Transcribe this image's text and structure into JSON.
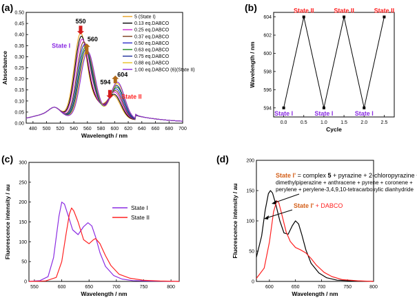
{
  "chart_data": [
    {
      "panel": "(a)",
      "type": "line",
      "xlabel": "Wavelength / nm",
      "ylabel": "Absorbance",
      "xlim": [
        470,
        700
      ],
      "ylim": [
        0,
        0.5
      ],
      "xticks": [
        480,
        500,
        520,
        540,
        560,
        580,
        600,
        620,
        640,
        660,
        680,
        700
      ],
      "yticks": [
        0.0,
        0.05,
        0.1,
        0.15,
        0.2,
        0.25,
        0.3,
        0.35,
        0.4,
        0.45,
        0.5
      ],
      "legend_position": "top-right",
      "series": [
        {
          "name": "5 (State I)",
          "color": "#e6a020",
          "p1": [
            550,
            0.385
          ],
          "p2": [
            598,
            0.11
          ]
        },
        {
          "name": "0.13 eq.DABCO",
          "color": "#000000",
          "p1": [
            551,
            0.37
          ],
          "p2": [
            599,
            0.115
          ]
        },
        {
          "name": "0.25 eq.DABCO",
          "color": "#d026d0",
          "p1": [
            552,
            0.355
          ],
          "p2": [
            600,
            0.125
          ]
        },
        {
          "name": "0.37 eq.DABCO",
          "color": "#7a3a1a",
          "p1": [
            554,
            0.34
          ],
          "p2": [
            601,
            0.132
          ]
        },
        {
          "name": "0.50 eq.DABCO",
          "color": "#2a2ac8",
          "p1": [
            555,
            0.325
          ],
          "p2": [
            602,
            0.14
          ]
        },
        {
          "name": "0.63 eq.DABCO",
          "color": "#1a8a1a",
          "p1": [
            556,
            0.31
          ],
          "p2": [
            603,
            0.148
          ]
        },
        {
          "name": "0.75 eq.DABCO",
          "color": "#1a2a9a",
          "p1": [
            557,
            0.3
          ],
          "p2": [
            603,
            0.155
          ]
        },
        {
          "name": "0.88 eq.DABCO",
          "color": "#e8c020",
          "p1": [
            558,
            0.29
          ],
          "p2": [
            604,
            0.163
          ]
        },
        {
          "name": "1.00 eq.DABCO (6)(State II)",
          "color": "#8a28d8",
          "p1": [
            559,
            0.28
          ],
          "p2": [
            604,
            0.17
          ]
        }
      ],
      "annotations": [
        {
          "text": "550",
          "x": 550,
          "y": 0.45
        },
        {
          "text": "560",
          "x": 560,
          "y": 0.37
        },
        {
          "text": "594",
          "x": 594,
          "y": 0.175
        },
        {
          "text": "604",
          "x": 604,
          "y": 0.21
        },
        {
          "text": "State I",
          "x": 535,
          "y": 0.34
        },
        {
          "text": "State II",
          "x": 610,
          "y": 0.11
        }
      ]
    },
    {
      "panel": "(b)",
      "type": "line",
      "xlabel": "Cycle",
      "ylabel": "Wavelength / nm",
      "xlim": [
        -0.25,
        2.75
      ],
      "ylim": [
        593,
        604.5
      ],
      "xticks": [
        0.0,
        0.5,
        1.0,
        1.5,
        2.0,
        2.5
      ],
      "yticks": [
        594,
        596,
        598,
        600,
        602,
        604
      ],
      "x": [
        0.0,
        0.5,
        1.0,
        1.5,
        2.0,
        2.5
      ],
      "y": [
        594,
        604,
        594,
        604,
        594,
        604
      ],
      "point_labels": [
        "State I",
        "State II",
        "State I",
        "State II",
        "State I",
        "State II"
      ]
    },
    {
      "panel": "(c)",
      "type": "line",
      "xlabel": "Wavelength / nm",
      "ylabel": "Fluorescence intensity / au",
      "xlim": [
        540,
        815
      ],
      "ylim": [
        0,
        300
      ],
      "xticks": [
        550,
        600,
        650,
        700,
        750,
        800
      ],
      "yticks": [
        0,
        50,
        100,
        150,
        200,
        250,
        300
      ],
      "legend_position": "center-right",
      "series": [
        {
          "name": "State I",
          "color": "#8a2be2",
          "x": [
            540,
            560,
            575,
            585,
            595,
            600,
            605,
            612,
            620,
            630,
            640,
            648,
            655,
            662,
            670,
            680,
            695,
            710,
            730,
            760,
            815
          ],
          "y": [
            0,
            2,
            12,
            60,
            165,
            200,
            195,
            165,
            130,
            118,
            138,
            148,
            140,
            112,
            72,
            38,
            15,
            6,
            2,
            1,
            0
          ]
        },
        {
          "name": "State II",
          "color": "#ff2020",
          "x": [
            540,
            570,
            590,
            600,
            608,
            614,
            618,
            622,
            630,
            640,
            650,
            658,
            662,
            670,
            680,
            690,
            705,
            725,
            750,
            780,
            815
          ],
          "y": [
            0,
            1,
            10,
            50,
            120,
            170,
            185,
            178,
            150,
            105,
            95,
            105,
            108,
            95,
            65,
            40,
            18,
            8,
            3,
            1,
            0
          ]
        }
      ]
    },
    {
      "panel": "(d)",
      "type": "line",
      "xlabel": "Wavelength / nm",
      "ylabel": "Fluorescence intensity / au",
      "xlim": [
        575,
        800
      ],
      "ylim": [
        0,
        200
      ],
      "xticks": [
        600,
        650,
        700,
        750,
        800
      ],
      "yticks": [
        0,
        50,
        100,
        150,
        200
      ],
      "series": [
        {
          "name": "State I'",
          "color": "#000000",
          "x": [
            575,
            585,
            592,
            598,
            602,
            606,
            612,
            620,
            628,
            636,
            644,
            650,
            656,
            662,
            670,
            680,
            695,
            710,
            730,
            760,
            800
          ],
          "y": [
            40,
            75,
            118,
            145,
            150,
            146,
            128,
            100,
            80,
            78,
            92,
            100,
            95,
            78,
            52,
            30,
            14,
            6,
            2,
            1,
            0
          ]
        },
        {
          "name": "State I' + DABCO",
          "color": "#ff2020",
          "x": [
            575,
            590,
            600,
            608,
            614,
            618,
            624,
            632,
            640,
            650,
            660,
            670,
            680,
            690,
            705,
            720,
            740,
            770,
            800
          ],
          "y": [
            5,
            22,
            65,
            115,
            133,
            130,
            110,
            82,
            66,
            56,
            52,
            47,
            38,
            27,
            15,
            8,
            3,
            1,
            0
          ]
        }
      ],
      "annotation_lines": {
        "line1_pre": "State I'",
        "line1_mid": " = complex ",
        "line1_num": "5",
        "line1_post": " + pyrazine + 2-chloropyrazine + 1,4-",
        "line2": "dimethylpiperazine + anthracene + pyrene + coronene +",
        "line3": "perylene + perylene-3,4,9,10-tetracarboxylic dianhydride",
        "label_a": "State I'",
        "label_b": " + DABCO"
      }
    }
  ]
}
